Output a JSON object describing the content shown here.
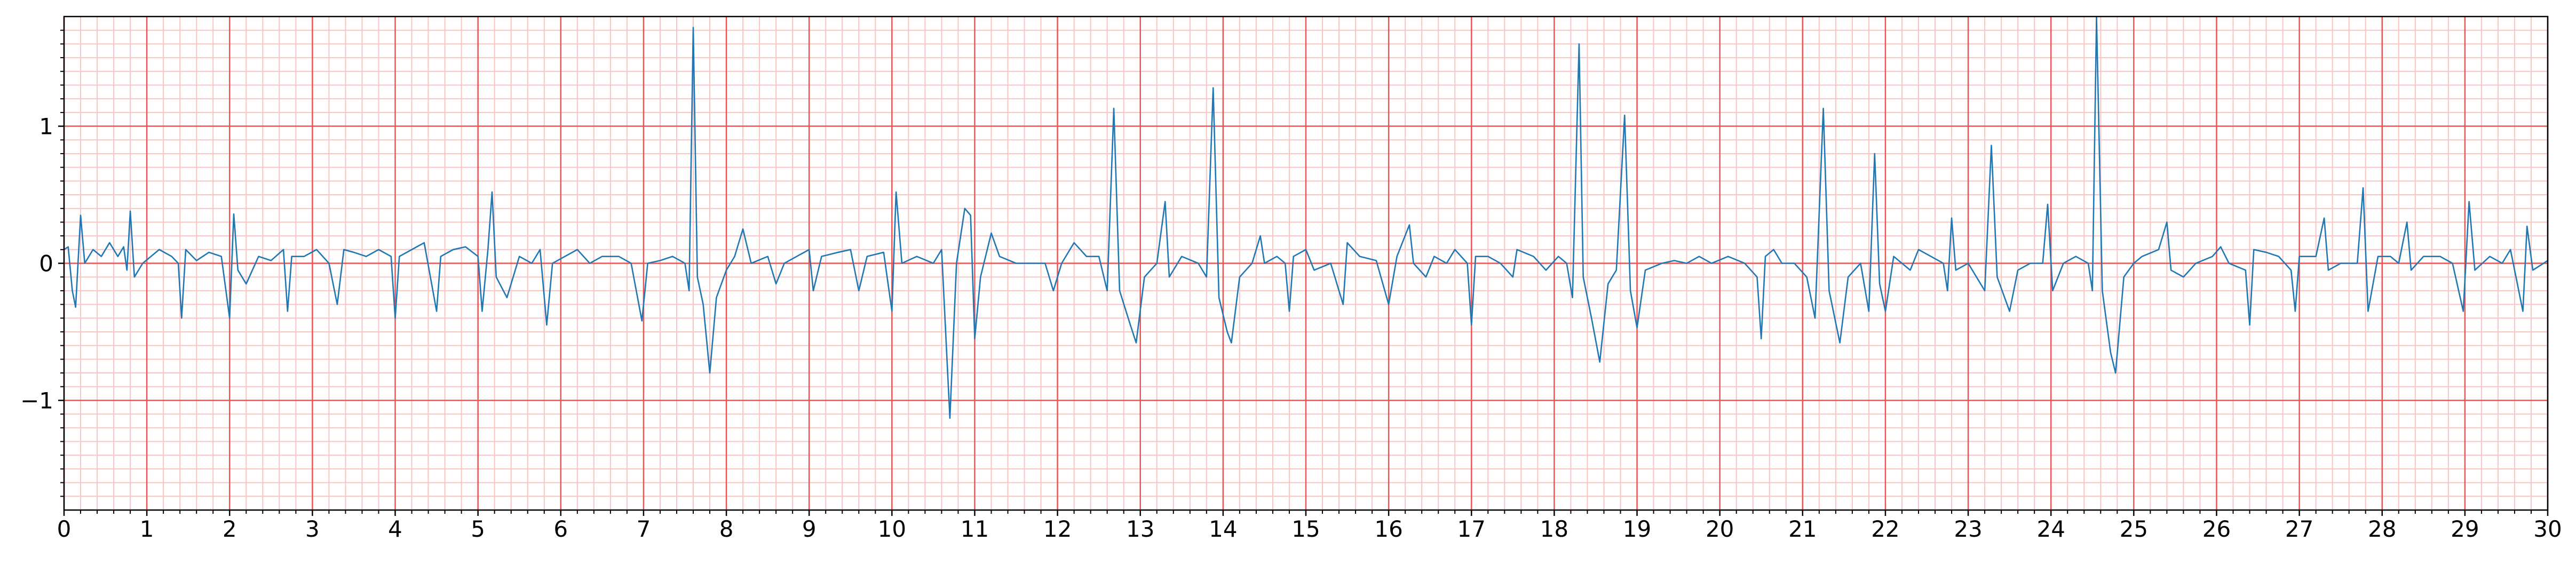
{
  "chart_data": {
    "type": "line",
    "x": [
      0.0,
      0.05,
      0.1,
      0.14,
      0.2,
      0.25,
      0.35,
      0.45,
      0.55,
      0.65,
      0.72,
      0.76,
      0.8,
      0.85,
      0.95,
      1.05,
      1.15,
      1.3,
      1.38,
      1.42,
      1.47,
      1.6,
      1.75,
      1.9,
      2.0,
      2.05,
      2.1,
      2.2,
      2.35,
      2.5,
      2.65,
      2.7,
      2.75,
      2.9,
      3.05,
      3.2,
      3.3,
      3.38,
      3.5,
      3.65,
      3.8,
      3.95,
      4.0,
      4.05,
      4.2,
      4.35,
      4.5,
      4.55,
      4.7,
      4.85,
      5.0,
      5.05,
      5.12,
      5.17,
      5.22,
      5.35,
      5.5,
      5.65,
      5.75,
      5.83,
      5.9,
      6.05,
      6.2,
      6.35,
      6.5,
      6.7,
      6.85,
      6.98,
      7.05,
      7.2,
      7.35,
      7.5,
      7.55,
      7.6,
      7.65,
      7.72,
      7.8,
      7.88,
      8.0,
      8.1,
      8.2,
      8.3,
      8.5,
      8.6,
      8.7,
      8.85,
      9.0,
      9.05,
      9.15,
      9.35,
      9.5,
      9.6,
      9.7,
      9.9,
      10.0,
      10.05,
      10.12,
      10.3,
      10.5,
      10.6,
      10.7,
      10.78,
      10.88,
      10.95,
      11.0,
      11.07,
      11.2,
      11.3,
      11.5,
      11.7,
      11.85,
      11.95,
      12.05,
      12.2,
      12.35,
      12.5,
      12.6,
      12.68,
      12.75,
      12.88,
      12.95,
      13.05,
      13.2,
      13.3,
      13.35,
      13.5,
      13.7,
      13.8,
      13.88,
      13.95,
      14.05,
      14.1,
      14.2,
      14.35,
      14.45,
      14.5,
      14.65,
      14.75,
      14.8,
      14.85,
      15.0,
      15.1,
      15.3,
      15.45,
      15.5,
      15.65,
      15.85,
      16.0,
      16.1,
      16.25,
      16.3,
      16.45,
      16.55,
      16.7,
      16.8,
      16.95,
      17.0,
      17.05,
      17.2,
      17.35,
      17.5,
      17.55,
      17.75,
      17.9,
      18.05,
      18.15,
      18.22,
      18.3,
      18.35,
      18.45,
      18.55,
      18.65,
      18.75,
      18.85,
      18.92,
      19.0,
      19.1,
      19.3,
      19.45,
      19.6,
      19.75,
      19.9,
      20.1,
      20.3,
      20.45,
      20.5,
      20.55,
      20.65,
      20.75,
      20.9,
      21.05,
      21.15,
      21.25,
      21.32,
      21.45,
      21.55,
      21.7,
      21.8,
      21.87,
      21.93,
      22.0,
      22.1,
      22.3,
      22.4,
      22.55,
      22.7,
      22.75,
      22.8,
      22.85,
      23.0,
      23.2,
      23.28,
      23.35,
      23.5,
      23.6,
      23.75,
      23.9,
      23.96,
      24.02,
      24.15,
      24.3,
      24.45,
      24.5,
      24.55,
      24.62,
      24.72,
      24.78,
      24.88,
      25.0,
      25.1,
      25.3,
      25.4,
      25.45,
      25.6,
      25.75,
      25.95,
      26.05,
      26.15,
      26.35,
      26.4,
      26.45,
      26.6,
      26.75,
      26.9,
      26.95,
      27.0,
      27.2,
      27.3,
      27.35,
      27.5,
      27.7,
      27.77,
      27.83,
      27.95,
      28.1,
      28.2,
      28.3,
      28.35,
      28.5,
      28.7,
      28.85,
      28.98,
      29.05,
      29.12,
      29.3,
      29.45,
      29.55,
      29.7,
      29.75,
      29.82,
      29.95,
      30.0
    ],
    "values": [
      0.1,
      0.12,
      -0.2,
      -0.32,
      0.35,
      0.0,
      0.1,
      0.05,
      0.15,
      0.05,
      0.12,
      -0.05,
      0.38,
      -0.1,
      0.0,
      0.05,
      0.1,
      0.05,
      0.0,
      -0.4,
      0.1,
      0.02,
      0.08,
      0.05,
      -0.4,
      0.36,
      -0.05,
      -0.15,
      0.05,
      0.02,
      0.1,
      -0.35,
      0.05,
      0.05,
      0.1,
      0.0,
      -0.3,
      0.1,
      0.08,
      0.05,
      0.1,
      0.05,
      -0.4,
      0.05,
      0.1,
      0.15,
      -0.35,
      0.05,
      0.1,
      0.12,
      0.05,
      -0.35,
      0.1,
      0.52,
      -0.1,
      -0.25,
      0.05,
      0.0,
      0.1,
      -0.45,
      0.0,
      0.05,
      0.1,
      0.0,
      0.05,
      0.05,
      0.0,
      -0.42,
      0.0,
      0.02,
      0.05,
      0.0,
      -0.2,
      1.72,
      -0.1,
      -0.3,
      -0.8,
      -0.25,
      -0.05,
      0.05,
      0.25,
      0.0,
      0.05,
      -0.15,
      0.0,
      0.05,
      0.1,
      -0.2,
      0.05,
      0.08,
      0.1,
      -0.2,
      0.05,
      0.08,
      -0.35,
      0.52,
      0.0,
      0.05,
      0.0,
      0.1,
      -1.13,
      0.0,
      0.4,
      0.35,
      -0.55,
      -0.1,
      0.22,
      0.05,
      0.0,
      0.0,
      0.0,
      -0.2,
      0.0,
      0.15,
      0.05,
      0.05,
      -0.2,
      1.13,
      -0.2,
      -0.45,
      -0.58,
      -0.1,
      0.0,
      0.45,
      -0.1,
      0.05,
      0.0,
      -0.1,
      1.28,
      -0.25,
      -0.5,
      -0.58,
      -0.1,
      0.0,
      0.2,
      0.0,
      0.05,
      0.0,
      -0.35,
      0.05,
      0.1,
      -0.05,
      0.0,
      -0.3,
      0.15,
      0.05,
      0.02,
      -0.3,
      0.05,
      0.28,
      0.0,
      -0.1,
      0.05,
      0.0,
      0.1,
      0.0,
      -0.45,
      0.05,
      0.05,
      0.0,
      -0.1,
      0.1,
      0.05,
      -0.05,
      0.05,
      0.0,
      -0.25,
      1.6,
      -0.1,
      -0.4,
      -0.72,
      -0.15,
      -0.05,
      1.08,
      -0.2,
      -0.47,
      -0.05,
      0.0,
      0.02,
      0.0,
      0.05,
      0.0,
      0.05,
      0.0,
      -0.1,
      -0.55,
      0.05,
      0.1,
      0.0,
      0.0,
      -0.1,
      -0.4,
      1.13,
      -0.2,
      -0.58,
      -0.1,
      0.0,
      -0.35,
      0.8,
      -0.15,
      -0.35,
      0.05,
      -0.05,
      0.1,
      0.05,
      0.0,
      -0.2,
      0.33,
      -0.05,
      0.0,
      -0.2,
      0.86,
      -0.1,
      -0.35,
      -0.05,
      0.0,
      0.0,
      0.43,
      -0.2,
      0.0,
      0.05,
      0.0,
      -0.2,
      1.8,
      -0.2,
      -0.65,
      -0.8,
      -0.1,
      0.0,
      0.05,
      0.1,
      0.3,
      -0.05,
      -0.1,
      0.0,
      0.05,
      0.12,
      0.0,
      -0.05,
      -0.45,
      0.1,
      0.08,
      0.05,
      -0.05,
      -0.35,
      0.05,
      0.05,
      0.33,
      -0.05,
      0.0,
      0.0,
      0.55,
      -0.35,
      0.05,
      0.05,
      0.0,
      0.3,
      -0.05,
      0.05,
      0.05,
      0.0,
      -0.35,
      0.45,
      -0.05,
      0.05,
      0.0,
      0.1,
      -0.35,
      0.27,
      -0.05,
      0.0,
      0.02
    ],
    "color": "#1f77b4",
    "xlim": [
      0,
      30
    ],
    "ylim": [
      -1.8,
      1.8
    ],
    "xticks": [
      0,
      1,
      2,
      3,
      4,
      5,
      6,
      7,
      8,
      9,
      10,
      11,
      12,
      13,
      14,
      15,
      16,
      17,
      18,
      19,
      20,
      21,
      22,
      23,
      24,
      25,
      26,
      27,
      28,
      29,
      30
    ],
    "yticks": [
      {
        "value": -1,
        "label": "−1"
      },
      0,
      1
    ],
    "xminorticks": [
      0.2,
      0.4,
      0.6,
      0.8,
      1.2,
      1.4,
      1.6,
      1.8,
      2.2,
      2.4,
      2.6,
      2.8,
      3.2,
      3.4,
      3.6,
      3.8,
      4.2,
      4.4,
      4.6,
      4.8,
      5.2,
      5.4,
      5.6,
      5.8,
      6.2,
      6.4,
      6.6,
      6.8,
      7.2,
      7.4,
      7.6,
      7.8,
      8.2,
      8.4,
      8.6,
      8.8,
      9.2,
      9.4,
      9.6,
      9.8,
      10.2,
      10.4,
      10.6,
      10.8,
      11.2,
      11.4,
      11.6,
      11.8,
      12.2,
      12.4,
      12.6,
      12.8,
      13.2,
      13.4,
      13.6,
      13.8,
      14.2,
      14.4,
      14.6,
      14.8,
      15.2,
      15.4,
      15.6,
      15.8,
      16.2,
      16.4,
      16.6,
      16.8,
      17.2,
      17.4,
      17.6,
      17.8,
      18.2,
      18.4,
      18.6,
      18.8,
      19.2,
      19.4,
      19.6,
      19.8,
      20.2,
      20.4,
      20.6,
      20.8,
      21.2,
      21.4,
      21.6,
      21.8,
      22.2,
      22.4,
      22.6,
      22.8,
      23.2,
      23.4,
      23.6,
      23.8,
      24.2,
      24.4,
      24.6,
      24.8,
      25.2,
      25.4,
      25.6,
      25.8,
      26.2,
      26.4,
      26.6,
      26.8,
      27.2,
      27.4,
      27.6,
      27.8,
      28.2,
      28.4,
      28.6,
      28.8,
      29.2,
      29.4,
      29.6,
      29.8
    ],
    "yminorticks": [
      -1.7,
      -1.6,
      -1.5,
      -1.4,
      -1.3,
      -1.2,
      -1.1,
      -0.9,
      -0.8,
      -0.7,
      -0.6,
      -0.5,
      -0.4,
      -0.3,
      -0.2,
      -0.1,
      0.1,
      0.2,
      0.3,
      0.4,
      0.5,
      0.6,
      0.7,
      0.8,
      0.9,
      1.1,
      1.2,
      1.3,
      1.4,
      1.5,
      1.6,
      1.7
    ],
    "grid": true,
    "major_grid_color": "#ec5555",
    "minor_grid_color": "#f9c4c4"
  }
}
